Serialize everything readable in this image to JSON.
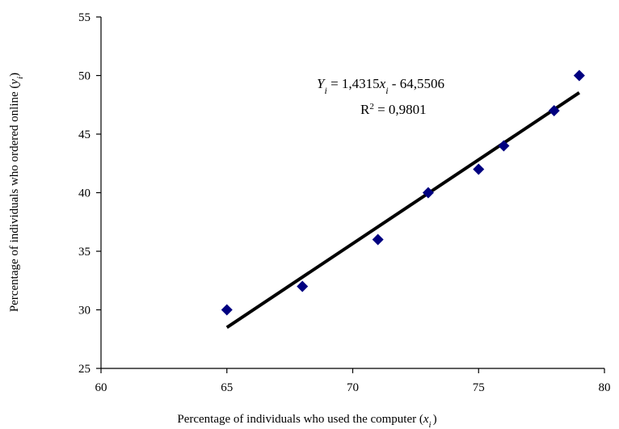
{
  "chart_data": {
    "type": "scatter",
    "xlabel": {
      "text": "Percentage of individuals who used the computer  (",
      "var": "x",
      "sub": "i",
      "close": ")"
    },
    "ylabel": {
      "text": "Percentage of individuals who ordered online (",
      "var": "y",
      "sub": "i",
      "close": ")"
    },
    "xlim": [
      60,
      80
    ],
    "ylim": [
      25,
      55
    ],
    "x_ticks": [
      60,
      65,
      70,
      75,
      80
    ],
    "y_ticks": [
      25,
      30,
      35,
      40,
      45,
      50,
      55
    ],
    "grid": false,
    "series": [
      {
        "marker": "diamond",
        "color": "#000080",
        "points": [
          {
            "x": 65,
            "y": 30
          },
          {
            "x": 68,
            "y": 32
          },
          {
            "x": 71,
            "y": 36
          },
          {
            "x": 73,
            "y": 40
          },
          {
            "x": 75,
            "y": 42
          },
          {
            "x": 76,
            "y": 44
          },
          {
            "x": 78,
            "y": 47
          },
          {
            "x": 79,
            "y": 50
          }
        ]
      }
    ],
    "trendline": {
      "type": "linear",
      "slope": 1.4315,
      "intercept": -64.5506,
      "x_range": [
        65,
        79
      ],
      "color": "#000000"
    },
    "equation": {
      "lhs_var": "Y",
      "lhs_sub": "i",
      "rhs_a": " = 1,4315",
      "rhs_var": "x",
      "rhs_sub": "i",
      "rhs_b": " - 64,5506"
    },
    "r_squared": {
      "prefix": "R",
      "sup": "2",
      "value": " = 0,9801"
    }
  }
}
